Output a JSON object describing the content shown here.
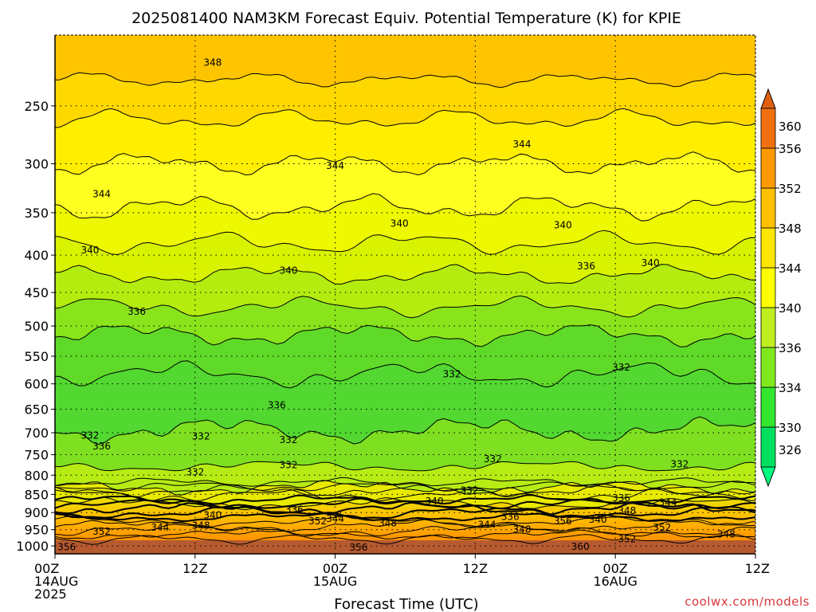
{
  "chart_data": {
    "type": "heatmap",
    "title": "2025081400 NAM3KM Forecast Equiv. Potential Temperature (K) for KPIE",
    "xlabel": "Forecast Time (UTC)",
    "ylabel": "",
    "x_ticks": [
      {
        "hour": 0,
        "lines": [
          "00Z",
          "14AUG",
          "2025"
        ]
      },
      {
        "hour": 12,
        "lines": [
          "12Z"
        ]
      },
      {
        "hour": 24,
        "lines": [
          "00Z",
          "15AUG"
        ]
      },
      {
        "hour": 36,
        "lines": [
          "12Z"
        ]
      },
      {
        "hour": 48,
        "lines": [
          "00Z",
          "16AUG"
        ]
      },
      {
        "hour": 60,
        "lines": [
          "12Z"
        ]
      }
    ],
    "xlim": [
      0,
      60
    ],
    "y_ticks": [
      250,
      300,
      350,
      400,
      450,
      500,
      550,
      600,
      650,
      700,
      750,
      800,
      850,
      900,
      950,
      1000
    ],
    "ylim": [
      1025,
      200
    ],
    "y_scale": "log",
    "colorbar": {
      "levels": [
        326,
        330,
        334,
        336,
        340,
        344,
        348,
        352,
        356,
        360
      ],
      "colors": [
        "#00e060",
        "#33e62d",
        "#80e81f",
        "#c0ee20",
        "#ffff00",
        "#ffe600",
        "#ffc000",
        "#ff9900",
        "#f07010",
        "#e06010"
      ],
      "extend": "both",
      "under_color": "#00ff80",
      "over_color": "#e06010"
    },
    "contour_labels": [
      {
        "text": "348",
        "hour": 13.5,
        "p": 218
      },
      {
        "text": "344",
        "hour": 40,
        "p": 282
      },
      {
        "text": "344",
        "hour": 24,
        "p": 302
      },
      {
        "text": "344",
        "hour": 4,
        "p": 330
      },
      {
        "text": "340",
        "hour": 29.5,
        "p": 362
      },
      {
        "text": "340",
        "hour": 43.5,
        "p": 364
      },
      {
        "text": "340",
        "hour": 3,
        "p": 394
      },
      {
        "text": "336",
        "hour": 45.5,
        "p": 414
      },
      {
        "text": "340",
        "hour": 51,
        "p": 410
      },
      {
        "text": "340",
        "hour": 20,
        "p": 420
      },
      {
        "text": "336",
        "hour": 7,
        "p": 478
      },
      {
        "text": "332",
        "hour": 48.5,
        "p": 570
      },
      {
        "text": "332",
        "hour": 34,
        "p": 582
      },
      {
        "text": "336",
        "hour": 19,
        "p": 642
      },
      {
        "text": "332",
        "hour": 3,
        "p": 706
      },
      {
        "text": "332",
        "hour": 12.5,
        "p": 708
      },
      {
        "text": "332",
        "hour": 20,
        "p": 716
      },
      {
        "text": "336",
        "hour": 4,
        "p": 730
      },
      {
        "text": "332",
        "hour": 37.5,
        "p": 760
      },
      {
        "text": "332",
        "hour": 20,
        "p": 775
      },
      {
        "text": "332",
        "hour": 12,
        "p": 792
      },
      {
        "text": "332",
        "hour": 53.5,
        "p": 773
      },
      {
        "text": "332",
        "hour": 35.5,
        "p": 840
      },
      {
        "text": "336",
        "hour": 48.5,
        "p": 860
      },
      {
        "text": "340",
        "hour": 32.5,
        "p": 868
      },
      {
        "text": "344",
        "hour": 52.5,
        "p": 872
      },
      {
        "text": "336",
        "hour": 20.5,
        "p": 892
      },
      {
        "text": "348",
        "hour": 49,
        "p": 895
      },
      {
        "text": "340",
        "hour": 13.5,
        "p": 907
      },
      {
        "text": "336",
        "hour": 39,
        "p": 912
      },
      {
        "text": "340",
        "hour": 46.5,
        "p": 920
      },
      {
        "text": "352",
        "hour": 22.5,
        "p": 925
      },
      {
        "text": "344",
        "hour": 24,
        "p": 918
      },
      {
        "text": "344",
        "hour": 37,
        "p": 935
      },
      {
        "text": "356",
        "hour": 43.5,
        "p": 925
      },
      {
        "text": "348",
        "hour": 28.5,
        "p": 930
      },
      {
        "text": "348",
        "hour": 12.5,
        "p": 938
      },
      {
        "text": "344",
        "hour": 9,
        "p": 943
      },
      {
        "text": "348",
        "hour": 40,
        "p": 950
      },
      {
        "text": "352",
        "hour": 52,
        "p": 943
      },
      {
        "text": "352",
        "hour": 4,
        "p": 955
      },
      {
        "text": "348",
        "hour": 57.5,
        "p": 964
      },
      {
        "text": "352",
        "hour": 49,
        "p": 978
      },
      {
        "text": "356",
        "hour": 1,
        "p": 1003
      },
      {
        "text": "356",
        "hour": 26,
        "p": 1004
      },
      {
        "text": "360",
        "hour": 45,
        "p": 1002
      }
    ]
  },
  "credit": "coolwx.com/models"
}
